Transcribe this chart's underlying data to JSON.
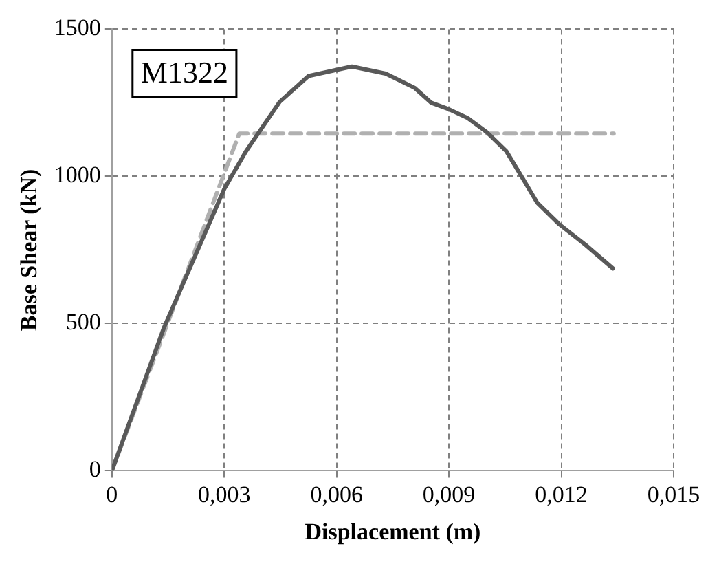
{
  "chart_data": {
    "type": "line",
    "xlabel": "Displacement (m)",
    "ylabel": "Base Shear (kN)",
    "annotations": [
      "M1322"
    ],
    "xlim": [
      0,
      0.015
    ],
    "xticks": [
      0,
      {
        "value": 0.003,
        "label": "0,003"
      },
      {
        "value": 0.006,
        "label": "0,006"
      },
      {
        "value": 0.009,
        "label": "0,009"
      },
      {
        "value": 0.012,
        "label": "0,012"
      },
      {
        "value": 0.015,
        "label": "0,015"
      }
    ],
    "ylim": [
      0,
      1500
    ],
    "yticks": [
      0,
      500,
      1000,
      1500
    ],
    "grid": true,
    "legend": false,
    "marker": "none",
    "series": [
      {
        "color": "#595959",
        "line_style": "solid",
        "x": [
          0,
          0.00139,
          0.003,
          0.00358,
          0.00448,
          0.00525,
          0.00641,
          0.00731,
          0.00808,
          0.00853,
          0.00898,
          0.0095,
          0.01001,
          0.01053,
          0.01091,
          0.01136,
          0.01194,
          0.01265,
          0.01338
        ],
        "values": [
          0,
          486,
          957,
          1085,
          1253,
          1341,
          1373,
          1349,
          1301,
          1250,
          1229,
          1198,
          1150,
          1086,
          1006,
          910,
          838,
          767,
          687
        ]
      },
      {
        "color": "#b0b0b0",
        "line_style": "dashed",
        "x": [
          0,
          0.0034,
          0.0134
        ],
        "values": [
          0,
          1145,
          1145
        ]
      }
    ]
  }
}
